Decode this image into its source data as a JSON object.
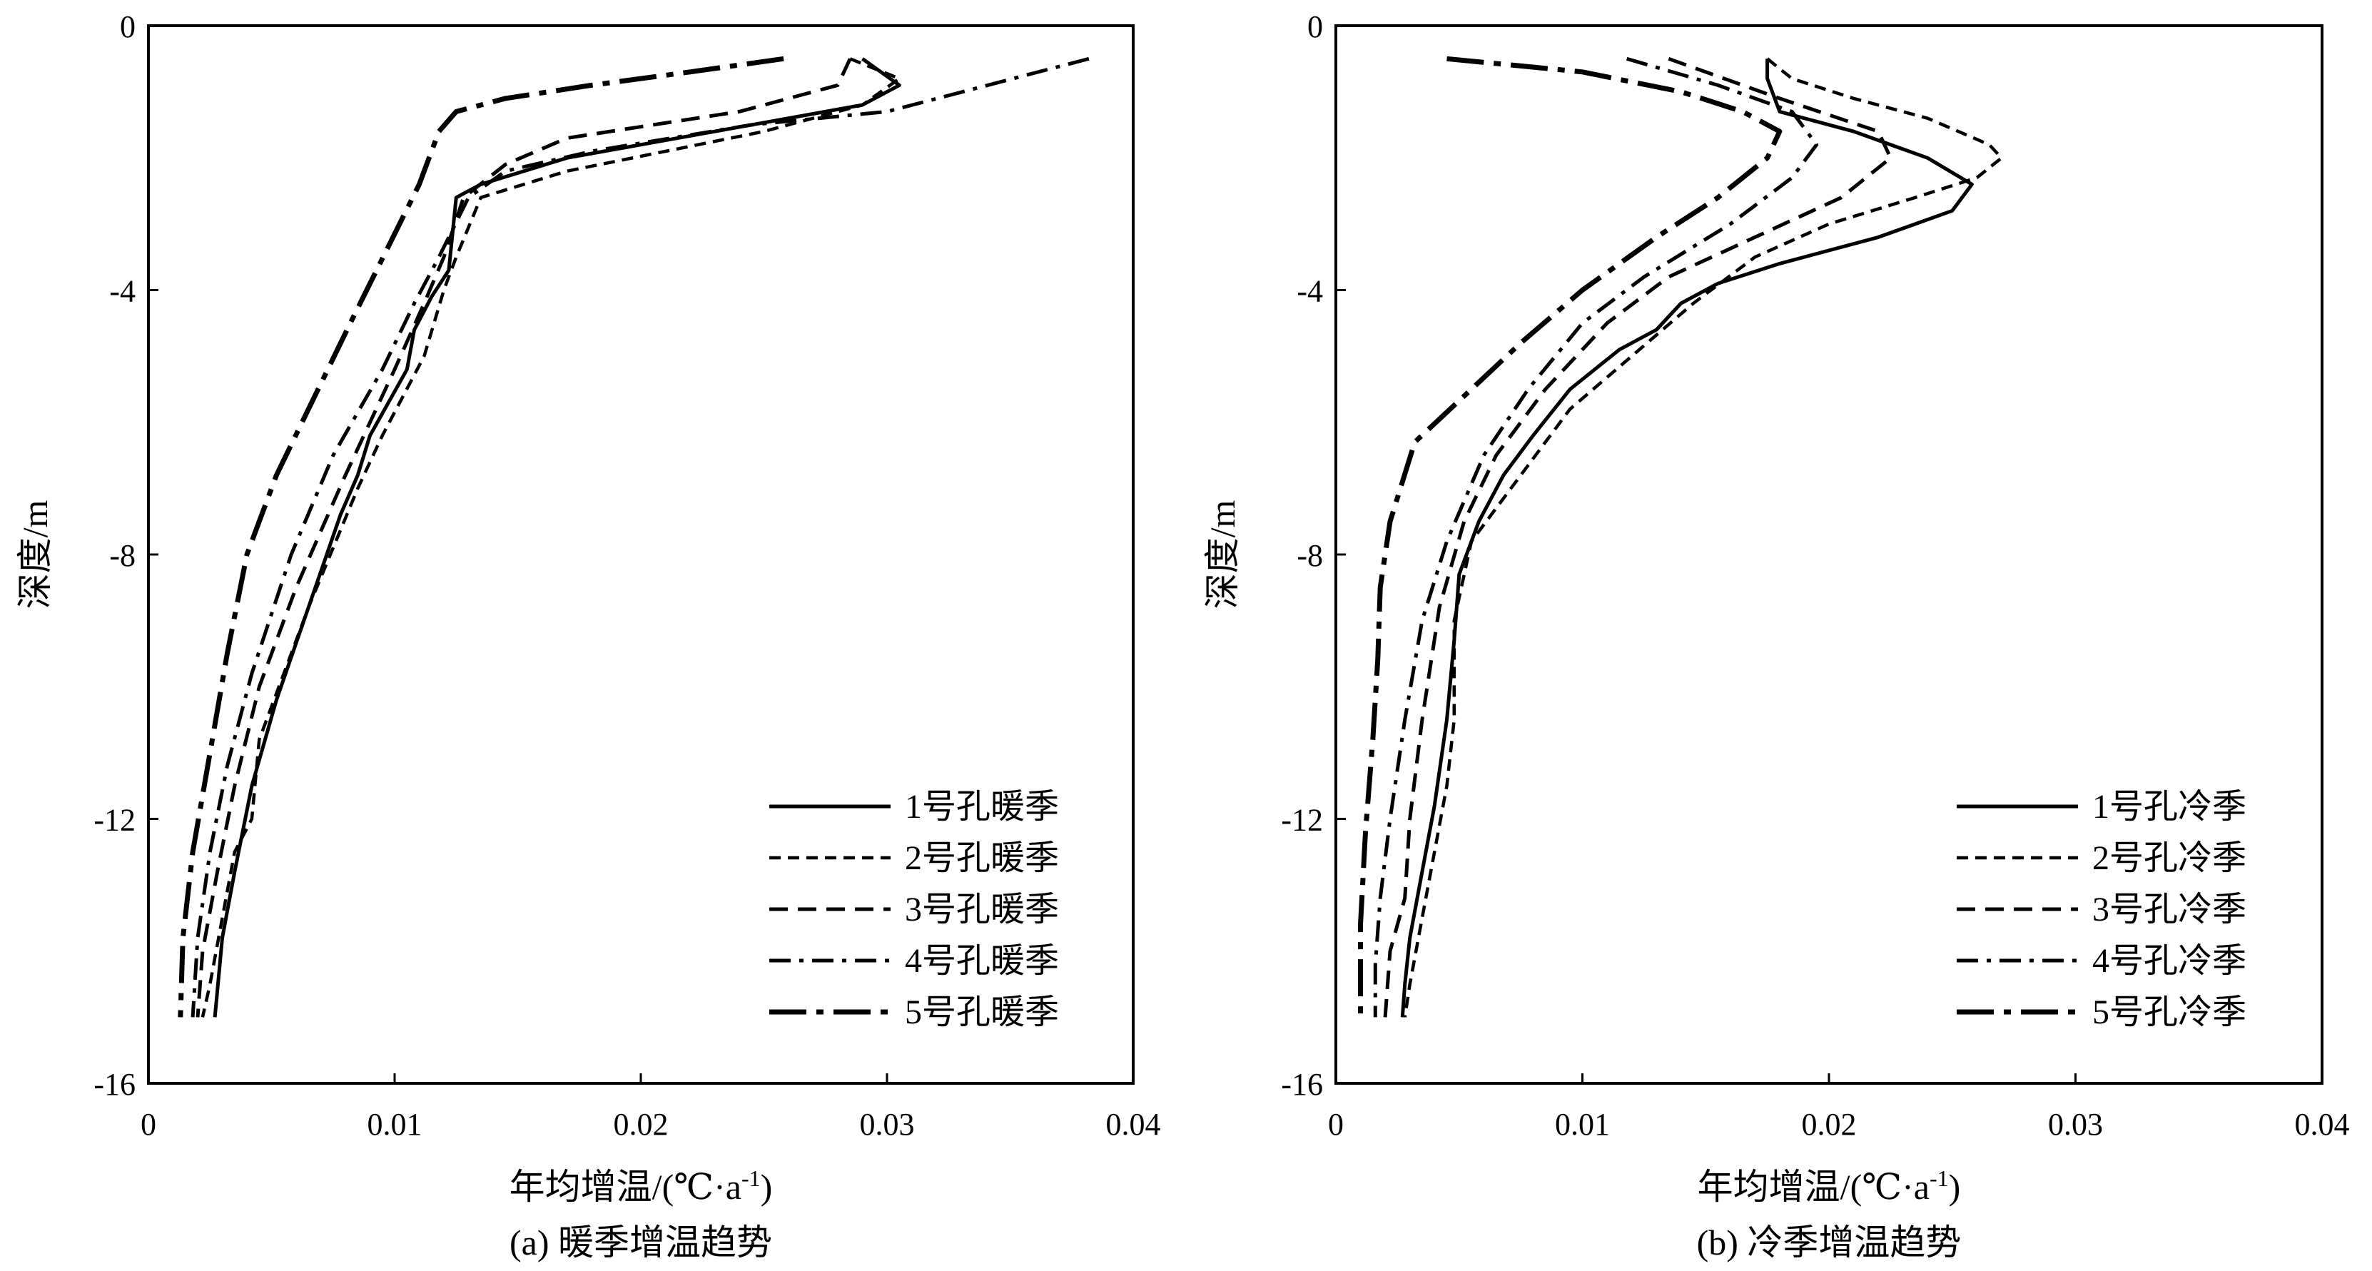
{
  "figure": {
    "panels": [
      {
        "caption": "(a) 暖季增温趋势",
        "xlabel": "年均增温/(℃·a",
        "xlabel_sup": "-1",
        "xlabel_close": ")",
        "ylabel": "深度/m"
      },
      {
        "caption": "(b) 冷季增温趋势",
        "xlabel": "年均增温/(℃·a",
        "xlabel_sup": "-1",
        "xlabel_close": ")",
        "ylabel": "深度/m"
      }
    ]
  },
  "chart_data": [
    {
      "type": "line",
      "title": "",
      "xlabel": "年均增温/(℃·a-1)",
      "ylabel": "深度/m",
      "xlim": [
        0,
        0.04
      ],
      "ylim": [
        -16,
        0
      ],
      "xticks": [
        0,
        0.01,
        0.02,
        0.03,
        0.04
      ],
      "yticks": [
        0,
        -4,
        -8,
        -12,
        -16
      ],
      "xtick_labels": [
        "0",
        "0.01",
        "0.02",
        "0.03",
        "0.04"
      ],
      "ytick_labels": [
        "0",
        "-4",
        "-8",
        "-12",
        "-16"
      ],
      "legend_position": "bottom-right",
      "grid": false,
      "series": [
        {
          "name": "1号孔暖季",
          "dash": "solid",
          "points": [
            [
              0.029,
              -0.5
            ],
            [
              0.0305,
              -0.9
            ],
            [
              0.029,
              -1.2
            ],
            [
              0.0245,
              -1.5
            ],
            [
              0.017,
              -2.0
            ],
            [
              0.0135,
              -2.4
            ],
            [
              0.0125,
              -2.6
            ],
            [
              0.0122,
              -3.7
            ],
            [
              0.0115,
              -4.1
            ],
            [
              0.0108,
              -4.6
            ],
            [
              0.0105,
              -5.2
            ],
            [
              0.009,
              -6.2
            ],
            [
              0.0085,
              -6.8
            ],
            [
              0.0078,
              -7.4
            ],
            [
              0.0065,
              -8.8
            ],
            [
              0.0052,
              -10.2
            ],
            [
              0.0042,
              -11.5
            ],
            [
              0.0035,
              -12.8
            ],
            [
              0.003,
              -13.8
            ],
            [
              0.0028,
              -14.6
            ],
            [
              0.0027,
              -15.0
            ]
          ]
        },
        {
          "name": "2号孔暖季",
          "dash": "short",
          "points": [
            [
              0.0285,
              -0.5
            ],
            [
              0.0305,
              -0.8
            ],
            [
              0.029,
              -1.2
            ],
            [
              0.025,
              -1.6
            ],
            [
              0.017,
              -2.2
            ],
            [
              0.0135,
              -2.6
            ],
            [
              0.0125,
              -3.5
            ],
            [
              0.012,
              -4.0
            ],
            [
              0.0112,
              -5.0
            ],
            [
              0.0095,
              -6.2
            ],
            [
              0.0085,
              -7.0
            ],
            [
              0.0065,
              -8.8
            ],
            [
              0.0045,
              -10.8
            ],
            [
              0.0042,
              -12.0
            ],
            [
              0.0035,
              -12.5
            ],
            [
              0.003,
              -13.5
            ],
            [
              0.0025,
              -14.5
            ],
            [
              0.0022,
              -15.0
            ]
          ]
        },
        {
          "name": "3号孔暖季",
          "dash": "medium",
          "points": [
            [
              0.0285,
              -0.5
            ],
            [
              0.028,
              -0.9
            ],
            [
              0.024,
              -1.3
            ],
            [
              0.017,
              -1.7
            ],
            [
              0.0145,
              -2.1
            ],
            [
              0.0128,
              -2.6
            ],
            [
              0.012,
              -3.5
            ],
            [
              0.0112,
              -4.2
            ],
            [
              0.01,
              -5.2
            ],
            [
              0.008,
              -6.8
            ],
            [
              0.006,
              -8.5
            ],
            [
              0.0045,
              -10.0
            ],
            [
              0.0035,
              -11.5
            ],
            [
              0.0028,
              -12.8
            ],
            [
              0.0022,
              -14.0
            ],
            [
              0.002,
              -15.0
            ]
          ]
        },
        {
          "name": "4号孔暖季",
          "dash": "dashdot",
          "points": [
            [
              0.0382,
              -0.5
            ],
            [
              0.03,
              -1.3
            ],
            [
              0.0245,
              -1.5
            ],
            [
              0.018,
              -1.9
            ],
            [
              0.0145,
              -2.2
            ],
            [
              0.013,
              -2.6
            ],
            [
              0.0118,
              -3.5
            ],
            [
              0.0108,
              -4.2
            ],
            [
              0.0095,
              -5.2
            ],
            [
              0.0075,
              -6.5
            ],
            [
              0.0058,
              -8.0
            ],
            [
              0.0042,
              -9.8
            ],
            [
              0.0032,
              -11.2
            ],
            [
              0.0025,
              -12.5
            ],
            [
              0.002,
              -13.8
            ],
            [
              0.0018,
              -15.0
            ]
          ]
        },
        {
          "name": "5号孔暖季",
          "dash": "longdashdot",
          "points": [
            [
              0.0258,
              -0.5
            ],
            [
              0.022,
              -0.7
            ],
            [
              0.018,
              -0.9
            ],
            [
              0.0145,
              -1.1
            ],
            [
              0.0125,
              -1.3
            ],
            [
              0.0118,
              -1.6
            ],
            [
              0.011,
              -2.4
            ],
            [
              0.0098,
              -3.3
            ],
            [
              0.0082,
              -4.5
            ],
            [
              0.0065,
              -5.8
            ],
            [
              0.0052,
              -6.8
            ],
            [
              0.004,
              -8.0
            ],
            [
              0.0032,
              -9.5
            ],
            [
              0.0025,
              -11.0
            ],
            [
              0.0018,
              -12.5
            ],
            [
              0.0014,
              -13.8
            ],
            [
              0.0013,
              -15.0
            ]
          ]
        }
      ]
    },
    {
      "type": "line",
      "title": "",
      "xlabel": "年均增温/(℃·a-1)",
      "ylabel": "深度/m",
      "xlim": [
        0,
        0.04
      ],
      "ylim": [
        -16,
        0
      ],
      "xticks": [
        0,
        0.01,
        0.02,
        0.03,
        0.04
      ],
      "yticks": [
        0,
        -4,
        -8,
        -12,
        -16
      ],
      "xtick_labels": [
        "0",
        "0.01",
        "0.02",
        "0.03",
        "0.04"
      ],
      "ytick_labels": [
        "0",
        -4,
        -8,
        -12,
        -16
      ],
      "legend_position": "bottom-right",
      "grid": false,
      "series": [
        {
          "name": "1号孔冷季",
          "dash": "solid",
          "points": [
            [
              0.0175,
              -0.5
            ],
            [
              0.0175,
              -0.8
            ],
            [
              0.018,
              -1.3
            ],
            [
              0.021,
              -1.6
            ],
            [
              0.024,
              -2.0
            ],
            [
              0.0258,
              -2.4
            ],
            [
              0.025,
              -2.8
            ],
            [
              0.022,
              -3.2
            ],
            [
              0.018,
              -3.6
            ],
            [
              0.0155,
              -3.9
            ],
            [
              0.014,
              -4.2
            ],
            [
              0.013,
              -4.6
            ],
            [
              0.0115,
              -4.9
            ],
            [
              0.0095,
              -5.5
            ],
            [
              0.008,
              -6.2
            ],
            [
              0.0068,
              -6.8
            ],
            [
              0.0058,
              -7.5
            ],
            [
              0.005,
              -8.3
            ],
            [
              0.0048,
              -9.3
            ],
            [
              0.0045,
              -10.5
            ],
            [
              0.004,
              -11.8
            ],
            [
              0.0035,
              -12.8
            ],
            [
              0.003,
              -13.8
            ],
            [
              0.0028,
              -14.5
            ],
            [
              0.0027,
              -15.0
            ]
          ]
        },
        {
          "name": "2号孔冷季",
          "dash": "short",
          "points": [
            [
              0.0175,
              -0.5
            ],
            [
              0.0185,
              -0.8
            ],
            [
              0.021,
              -1.1
            ],
            [
              0.024,
              -1.4
            ],
            [
              0.0265,
              -1.8
            ],
            [
              0.027,
              -2.0
            ],
            [
              0.026,
              -2.3
            ],
            [
              0.0235,
              -2.6
            ],
            [
              0.02,
              -3.0
            ],
            [
              0.017,
              -3.5
            ],
            [
              0.0145,
              -4.2
            ],
            [
              0.012,
              -5.0
            ],
            [
              0.0095,
              -5.8
            ],
            [
              0.0075,
              -6.8
            ],
            [
              0.0055,
              -7.8
            ],
            [
              0.0048,
              -9.0
            ],
            [
              0.0048,
              -10.5
            ],
            [
              0.0045,
              -11.5
            ],
            [
              0.004,
              -12.5
            ],
            [
              0.0035,
              -13.5
            ],
            [
              0.003,
              -14.5
            ],
            [
              0.0028,
              -15.0
            ]
          ]
        },
        {
          "name": "3号孔冷季",
          "dash": "medium",
          "points": [
            [
              0.0135,
              -0.5
            ],
            [
              0.018,
              -1.1
            ],
            [
              0.022,
              -1.6
            ],
            [
              0.0225,
              -2.0
            ],
            [
              0.0205,
              -2.6
            ],
            [
              0.017,
              -3.2
            ],
            [
              0.0135,
              -3.8
            ],
            [
              0.011,
              -4.5
            ],
            [
              0.0085,
              -5.5
            ],
            [
              0.0065,
              -6.5
            ],
            [
              0.0052,
              -7.5
            ],
            [
              0.0042,
              -8.8
            ],
            [
              0.0035,
              -10.5
            ],
            [
              0.003,
              -12.0
            ],
            [
              0.0028,
              -13.2
            ],
            [
              0.0022,
              -14.0
            ],
            [
              0.002,
              -15.0
            ]
          ]
        },
        {
          "name": "4号孔冷季",
          "dash": "dashdot",
          "points": [
            [
              0.0118,
              -0.5
            ],
            [
              0.0155,
              -0.9
            ],
            [
              0.0185,
              -1.3
            ],
            [
              0.0195,
              -1.8
            ],
            [
              0.0185,
              -2.3
            ],
            [
              0.016,
              -3.0
            ],
            [
              0.0125,
              -3.8
            ],
            [
              0.01,
              -4.5
            ],
            [
              0.0078,
              -5.5
            ],
            [
              0.006,
              -6.5
            ],
            [
              0.0045,
              -7.8
            ],
            [
              0.0035,
              -9.0
            ],
            [
              0.0028,
              -10.5
            ],
            [
              0.0022,
              -12.0
            ],
            [
              0.0018,
              -13.2
            ],
            [
              0.0016,
              -14.2
            ],
            [
              0.0016,
              -15.0
            ]
          ]
        },
        {
          "name": "5号孔冷季",
          "dash": "longdashdot",
          "points": [
            [
              0.0045,
              -0.5
            ],
            [
              0.01,
              -0.7
            ],
            [
              0.014,
              -1.0
            ],
            [
              0.0165,
              -1.3
            ],
            [
              0.018,
              -1.6
            ],
            [
              0.0175,
              -2.0
            ],
            [
              0.0155,
              -2.6
            ],
            [
              0.013,
              -3.2
            ],
            [
              0.01,
              -4.0
            ],
            [
              0.0075,
              -4.8
            ],
            [
              0.0055,
              -5.5
            ],
            [
              0.0032,
              -6.3
            ],
            [
              0.0022,
              -7.5
            ],
            [
              0.0018,
              -8.5
            ],
            [
              0.0017,
              -9.6
            ],
            [
              0.0015,
              -10.8
            ],
            [
              0.0012,
              -12.2
            ],
            [
              0.001,
              -13.6
            ],
            [
              0.001,
              -15.0
            ]
          ]
        }
      ]
    }
  ]
}
